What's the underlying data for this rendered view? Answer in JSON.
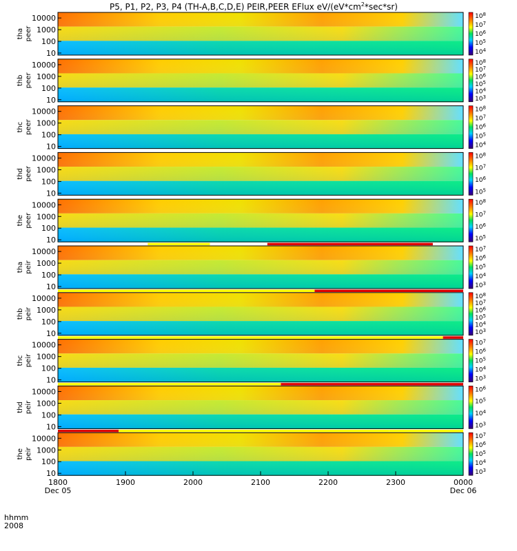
{
  "chart_data": {
    "type": "heatmap",
    "title": "P5, P1, P2, P3, P4 (TH-A,B,C,D,E) PEIR,PEER EFlux eV/(eV*cm",
    "title_sup": "2",
    "title_tail": "*sec*sr)",
    "x_axis": {
      "row_label": "hhmm",
      "year_label": "2008",
      "ticks": [
        "1800",
        "1900",
        "2000",
        "2100",
        "2200",
        "2300",
        "0000"
      ],
      "date_labels": [
        {
          "at": "1800",
          "text": "Dec 05"
        },
        {
          "at": "0000",
          "text": "Dec 06"
        }
      ],
      "range_hours": [
        18,
        24
      ]
    },
    "y_scale": "log",
    "panels": [
      {
        "probe": "tha",
        "species": "peer",
        "yticks": [
          "10",
          "100",
          "1000",
          "10000"
        ],
        "cbar": [
          "10^8",
          "10^7",
          "10^6",
          "10^5",
          "10^4"
        ],
        "flags": []
      },
      {
        "probe": "thb",
        "species": "peer",
        "yticks": [
          "10",
          "100",
          "1000",
          "10000"
        ],
        "cbar": [
          "10^8",
          "10^7",
          "10^6",
          "10^5",
          "10^4",
          "10^3"
        ],
        "flags": []
      },
      {
        "probe": "thc",
        "species": "peer",
        "yticks": [
          "10",
          "100",
          "1000",
          "10000"
        ],
        "cbar": [
          "10^8",
          "10^7",
          "10^6",
          "10^5",
          "10^4"
        ],
        "flags": []
      },
      {
        "probe": "thd",
        "species": "peer",
        "yticks": [
          "10",
          "100",
          "1000",
          "10000"
        ],
        "cbar": [
          "10^8",
          "10^7",
          "10^6",
          "10^5"
        ],
        "flags": []
      },
      {
        "probe": "the",
        "species": "peer",
        "yticks": [
          "10",
          "100",
          "1000",
          "10000"
        ],
        "cbar": [
          "10^8",
          "10^7",
          "10^6",
          "10^5"
        ],
        "flags": [
          [
            19.33,
            20.25,
            "#ffff00"
          ],
          [
            21.1,
            23.55,
            "#dd0000"
          ]
        ]
      },
      {
        "probe": "tha",
        "species": "peir",
        "yticks": [
          "10",
          "100",
          "1000",
          "10000"
        ],
        "cbar": [
          "10^7",
          "10^6",
          "10^5",
          "10^4",
          "10^3"
        ],
        "flags": [
          [
            18.0,
            21.8,
            "#ffff00"
          ],
          [
            21.8,
            24.0,
            "#dd0000"
          ]
        ]
      },
      {
        "probe": "thb",
        "species": "peir",
        "yticks": [
          "10",
          "100",
          "1000",
          "10000"
        ],
        "cbar": [
          "10^8",
          "10^7",
          "10^6",
          "10^5",
          "10^4",
          "10^3"
        ],
        "flags": [
          [
            18.0,
            23.7,
            "#ffff00"
          ],
          [
            23.7,
            24.0,
            "#dd0000"
          ]
        ]
      },
      {
        "probe": "thc",
        "species": "peir",
        "yticks": [
          "10",
          "100",
          "1000",
          "10000"
        ],
        "cbar": [
          "10^7",
          "10^6",
          "10^5",
          "10^4",
          "10^3"
        ],
        "flags": [
          [
            18.0,
            21.3,
            "#ffff00"
          ],
          [
            21.3,
            24.0,
            "#dd0000"
          ]
        ]
      },
      {
        "probe": "thd",
        "species": "peir",
        "yticks": [
          "10",
          "100",
          "1000",
          "10000"
        ],
        "cbar": [
          "10^6",
          "10^5",
          "10^4",
          "10^3"
        ],
        "flags": [
          [
            18.0,
            18.9,
            "#dd0000"
          ],
          [
            18.9,
            22.9,
            "#ffff00"
          ],
          [
            22.9,
            24.0,
            "#ffff00"
          ]
        ]
      },
      {
        "probe": "the",
        "species": "peir",
        "yticks": [
          "10",
          "100",
          "1000",
          "10000"
        ],
        "cbar": [
          "10^7",
          "10^6",
          "10^5",
          "10^4",
          "10^3"
        ],
        "flags": []
      }
    ]
  }
}
